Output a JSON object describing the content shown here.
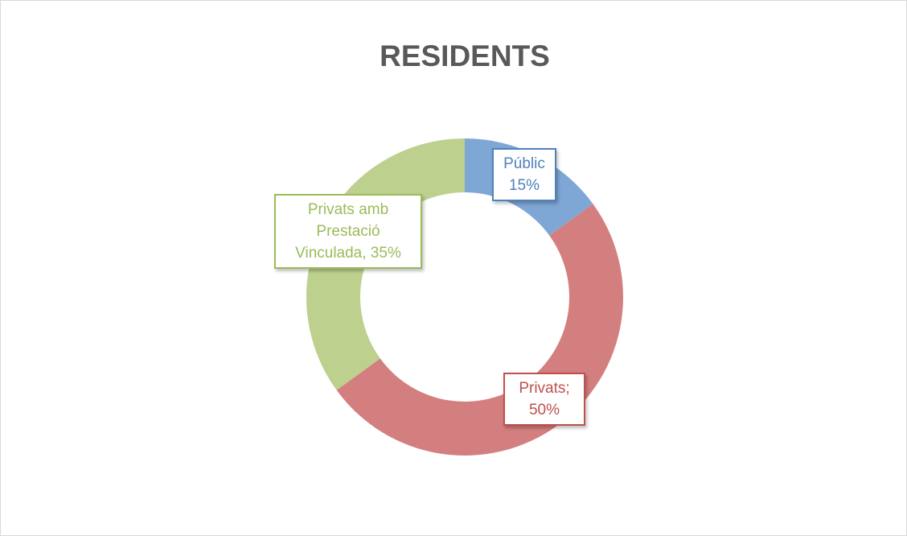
{
  "chart_data": {
    "type": "donut",
    "title": "RESIDENTS",
    "values": [
      15,
      50,
      35
    ],
    "value_labels": [
      "Públic 15%",
      "Privats; 50%",
      "Privats amb Prestació Vinculada, 35%"
    ],
    "colors": [
      "#7fa7d5",
      "#d47f7f",
      "#bdd08e"
    ],
    "label_colors": [
      "#4f81bd",
      "#c0504d",
      "#9bbb59"
    ]
  }
}
